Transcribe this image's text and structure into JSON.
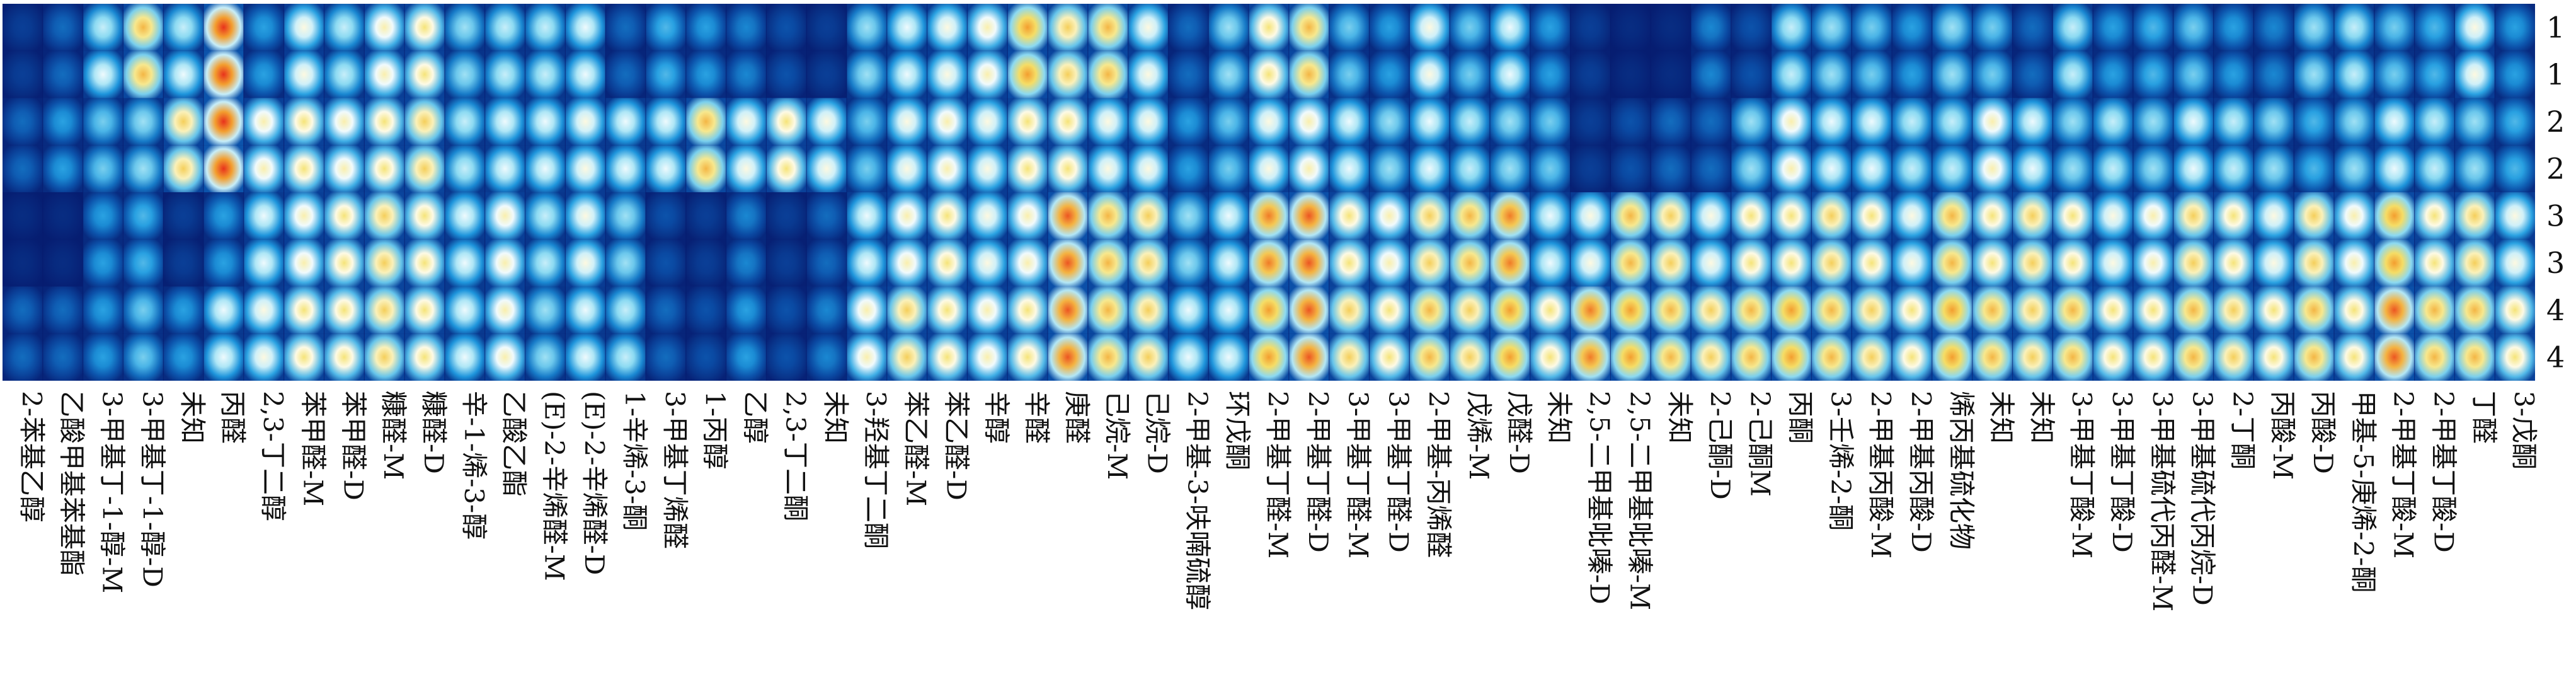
{
  "chart_data": {
    "type": "heatmap",
    "title": "",
    "xlabel": "",
    "ylabel": "",
    "colorscale": [
      "#061a6e",
      "#0b4fa8",
      "#1f9be0",
      "#8fdcf2",
      "#ffffff",
      "#f5e16a",
      "#f39a2c",
      "#e8321c"
    ],
    "rows": [
      "1",
      "1",
      "2",
      "2",
      "3",
      "3",
      "4",
      "4"
    ],
    "columns": [
      "2-苯基乙醇",
      "乙酸甲基苯基酯",
      "3-甲基丁-1-醇-M",
      "3-甲基丁-1-醇-D",
      "未知",
      "丙醛",
      "2,3-丁二醇",
      "苯甲醛-M",
      "苯甲醛-D",
      "糠醛-M",
      "糠醛-D",
      "辛-1-烯-3-醇",
      "乙酸乙酯",
      "(E)-2-辛烯醛-M",
      "(E)-2-辛烯醛-D",
      "1-辛烯-3-酮",
      "3-甲基丁烯醛",
      "1-丙醇",
      "乙醇",
      "2,3-丁二酮",
      "未知",
      "3-羟基丁二酮",
      "苯乙醛-M",
      "苯乙醛-D",
      "辛醇",
      "辛醛",
      "庚醛",
      "己烷-M",
      "己烷-D",
      "2-甲基-3-呋喃硫醇",
      "环戊酮",
      "2-甲基丁醛-M",
      "2-甲基丁醛-D",
      "3-甲基丁醛-M",
      "3-甲基丁醛-D",
      "2-甲基-丙烯醛",
      "戊烯-M",
      "戊醛-D",
      "未知",
      "2,5-二甲基吡嗪-D",
      "2,5-二甲基吡嗪-M",
      "未知",
      "2-己酮-D",
      "2-己酮M",
      "丙酮",
      "3-壬烯-2-酮",
      "2-甲基丙酸-M",
      "2-甲基丙酸-D",
      "烯丙基硫化物",
      "未知",
      "未知",
      "3-甲基丁酸-M",
      "3-甲基丁酸-D",
      "3-甲基硫代丙醛-M",
      "3-甲基硫代丙烷-D",
      "2-丁酮",
      "丙酸-M",
      "丙酸-D",
      "甲基-5-庚烯-2-酮",
      "2-甲基丁酸-M",
      "2-甲基丁酸-D",
      "丁醛",
      "3-戊酮"
    ],
    "values": [
      [
        0.1,
        0.2,
        0.5,
        0.8,
        0.5,
        1.0,
        0.3,
        0.6,
        0.5,
        0.65,
        0.7,
        0.45,
        0.5,
        0.5,
        0.55,
        0.2,
        0.35,
        0.3,
        0.25,
        0.15,
        0.1,
        0.45,
        0.55,
        0.6,
        0.65,
        0.85,
        0.75,
        0.8,
        0.6,
        0.2,
        0.45,
        0.7,
        0.8,
        0.4,
        0.3,
        0.6,
        0.4,
        0.55,
        0.3,
        0.1,
        0.05,
        0.05,
        0.25,
        0.15,
        0.5,
        0.45,
        0.4,
        0.3,
        0.45,
        0.4,
        0.2,
        0.5,
        0.3,
        0.35,
        0.4,
        0.3,
        0.25,
        0.45,
        0.5,
        0.4,
        0.35,
        0.6,
        0.3
      ],
      [
        0.1,
        0.2,
        0.55,
        0.8,
        0.55,
        1.0,
        0.3,
        0.6,
        0.5,
        0.65,
        0.7,
        0.45,
        0.5,
        0.5,
        0.55,
        0.2,
        0.35,
        0.3,
        0.25,
        0.15,
        0.1,
        0.45,
        0.55,
        0.6,
        0.65,
        0.85,
        0.75,
        0.8,
        0.6,
        0.2,
        0.45,
        0.7,
        0.8,
        0.4,
        0.3,
        0.6,
        0.4,
        0.55,
        0.3,
        0.1,
        0.05,
        0.05,
        0.25,
        0.15,
        0.5,
        0.45,
        0.4,
        0.3,
        0.45,
        0.4,
        0.2,
        0.5,
        0.3,
        0.35,
        0.4,
        0.3,
        0.25,
        0.45,
        0.5,
        0.4,
        0.35,
        0.6,
        0.3
      ],
      [
        0.2,
        0.3,
        0.4,
        0.45,
        0.75,
        1.0,
        0.65,
        0.7,
        0.65,
        0.7,
        0.75,
        0.5,
        0.55,
        0.55,
        0.6,
        0.55,
        0.55,
        0.8,
        0.6,
        0.7,
        0.6,
        0.4,
        0.6,
        0.65,
        0.6,
        0.7,
        0.7,
        0.6,
        0.6,
        0.3,
        0.4,
        0.6,
        0.65,
        0.55,
        0.45,
        0.55,
        0.5,
        0.45,
        0.4,
        0.1,
        0.15,
        0.2,
        0.2,
        0.45,
        0.65,
        0.55,
        0.55,
        0.5,
        0.5,
        0.65,
        0.55,
        0.45,
        0.5,
        0.45,
        0.55,
        0.5,
        0.45,
        0.35,
        0.45,
        0.55,
        0.5,
        0.45,
        0.35
      ],
      [
        0.2,
        0.3,
        0.4,
        0.45,
        0.75,
        1.0,
        0.65,
        0.7,
        0.65,
        0.7,
        0.75,
        0.5,
        0.55,
        0.55,
        0.6,
        0.55,
        0.55,
        0.8,
        0.6,
        0.7,
        0.6,
        0.4,
        0.6,
        0.65,
        0.6,
        0.7,
        0.7,
        0.6,
        0.6,
        0.3,
        0.4,
        0.6,
        0.65,
        0.55,
        0.45,
        0.55,
        0.5,
        0.45,
        0.4,
        0.1,
        0.15,
        0.2,
        0.2,
        0.45,
        0.65,
        0.55,
        0.55,
        0.5,
        0.5,
        0.65,
        0.55,
        0.45,
        0.5,
        0.45,
        0.55,
        0.5,
        0.45,
        0.35,
        0.45,
        0.55,
        0.5,
        0.45,
        0.35
      ],
      [
        0.05,
        0.05,
        0.3,
        0.35,
        0.1,
        0.3,
        0.55,
        0.65,
        0.7,
        0.75,
        0.7,
        0.55,
        0.65,
        0.5,
        0.6,
        0.45,
        0.15,
        0.1,
        0.25,
        0.1,
        0.2,
        0.55,
        0.65,
        0.7,
        0.6,
        0.65,
        0.95,
        0.8,
        0.75,
        0.45,
        0.55,
        0.9,
        0.95,
        0.7,
        0.65,
        0.75,
        0.8,
        0.9,
        0.55,
        0.6,
        0.8,
        0.75,
        0.6,
        0.7,
        0.7,
        0.75,
        0.7,
        0.6,
        0.8,
        0.7,
        0.75,
        0.7,
        0.6,
        0.65,
        0.75,
        0.7,
        0.6,
        0.75,
        0.65,
        0.85,
        0.7,
        0.75,
        0.6
      ],
      [
        0.05,
        0.05,
        0.3,
        0.35,
        0.1,
        0.3,
        0.55,
        0.65,
        0.7,
        0.75,
        0.7,
        0.55,
        0.65,
        0.5,
        0.6,
        0.45,
        0.15,
        0.1,
        0.25,
        0.1,
        0.2,
        0.55,
        0.65,
        0.7,
        0.6,
        0.65,
        0.95,
        0.8,
        0.75,
        0.45,
        0.55,
        0.9,
        0.95,
        0.7,
        0.65,
        0.75,
        0.8,
        0.9,
        0.55,
        0.6,
        0.8,
        0.75,
        0.6,
        0.7,
        0.7,
        0.75,
        0.7,
        0.6,
        0.8,
        0.7,
        0.75,
        0.7,
        0.6,
        0.65,
        0.75,
        0.7,
        0.6,
        0.75,
        0.65,
        0.85,
        0.7,
        0.75,
        0.6
      ],
      [
        0.2,
        0.2,
        0.3,
        0.4,
        0.3,
        0.55,
        0.6,
        0.7,
        0.7,
        0.75,
        0.7,
        0.55,
        0.65,
        0.45,
        0.55,
        0.5,
        0.2,
        0.15,
        0.3,
        0.15,
        0.25,
        0.65,
        0.75,
        0.7,
        0.65,
        0.7,
        0.95,
        0.8,
        0.75,
        0.55,
        0.55,
        0.85,
        0.95,
        0.75,
        0.7,
        0.8,
        0.75,
        0.85,
        0.7,
        0.9,
        0.85,
        0.8,
        0.75,
        0.8,
        0.85,
        0.8,
        0.75,
        0.7,
        0.85,
        0.8,
        0.75,
        0.8,
        0.7,
        0.7,
        0.8,
        0.75,
        0.7,
        0.8,
        0.7,
        0.95,
        0.8,
        0.8,
        0.7
      ],
      [
        0.2,
        0.2,
        0.3,
        0.4,
        0.3,
        0.55,
        0.6,
        0.7,
        0.7,
        0.75,
        0.7,
        0.55,
        0.65,
        0.45,
        0.55,
        0.5,
        0.2,
        0.15,
        0.3,
        0.15,
        0.25,
        0.65,
        0.75,
        0.7,
        0.65,
        0.7,
        0.95,
        0.8,
        0.75,
        0.55,
        0.55,
        0.85,
        0.95,
        0.75,
        0.7,
        0.8,
        0.75,
        0.85,
        0.7,
        0.9,
        0.85,
        0.8,
        0.75,
        0.8,
        0.85,
        0.8,
        0.75,
        0.7,
        0.85,
        0.8,
        0.75,
        0.8,
        0.7,
        0.7,
        0.8,
        0.75,
        0.7,
        0.8,
        0.7,
        0.95,
        0.8,
        0.8,
        0.7
      ]
    ]
  }
}
